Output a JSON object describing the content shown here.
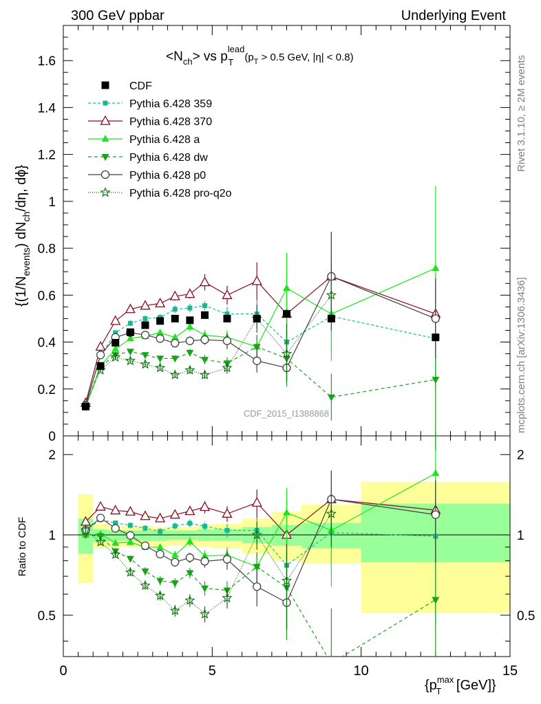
{
  "header": {
    "left": "300 GeV ppbar",
    "right": "Underlying Event"
  },
  "side_labels": {
    "top": "Rivet 3.1.10, ≥ 2M events",
    "bottom": "mcplots.cern.ch [arXiv:1306.3436]"
  },
  "watermark": "CDF_2015_I1388868",
  "plot_title": {
    "main": "<N",
    "sub": "ch",
    "mid": "> vs p",
    "sup": "lead",
    "sub2": "T",
    "cut": "(p",
    "cut_sub": "T",
    "cut_rest": " > 0.5 GeV, |η| < 0.8)"
  },
  "y_label": {
    "a": "{(1/N",
    "a_sub": "events",
    "b": ") dN",
    "b_sub": "ch",
    "c": "/dη, dϕ}"
  },
  "ratio_label": "Ratio to CDF",
  "x_label": {
    "a": "{p",
    "sup": "max",
    "sub": "T",
    "b": " [GeV]}"
  },
  "legend": [
    {
      "label": "CDF"
    },
    {
      "label": "Pythia 6.428 359"
    },
    {
      "label": "Pythia 6.428 370"
    },
    {
      "label": "Pythia 6.428 a"
    },
    {
      "label": "Pythia 6.428 dw"
    },
    {
      "label": "Pythia 6.428 p0"
    },
    {
      "label": "Pythia 6.428 pro-q2o"
    }
  ],
  "chart_data": {
    "type": "scatter",
    "x": [
      0.75,
      1.25,
      1.75,
      2.25,
      2.75,
      3.25,
      3.75,
      4.25,
      4.75,
      5.5,
      6.5,
      7.5,
      9.0,
      12.5
    ],
    "xlim": [
      0,
      15
    ],
    "ylim": [
      0,
      1.75
    ],
    "ratio_ylim": [
      0.35,
      2.35
    ],
    "x_ticks": [
      "0",
      "5",
      "10",
      "15"
    ],
    "y_ticks": [
      "0",
      "0.2",
      "0.4",
      "0.6",
      "0.8",
      "1",
      "1.2",
      "1.4",
      "1.6"
    ],
    "ratio_ticks_left": [
      "0.5",
      "1",
      "2"
    ],
    "ratio_ticks_right": [
      "0.5",
      "1",
      "2"
    ],
    "band_edges": [
      0.5,
      1.0,
      1.5,
      2.0,
      2.5,
      3.0,
      3.5,
      4.0,
      4.5,
      5.0,
      6.0,
      7.0,
      8.0,
      10.0,
      15.0
    ],
    "band_inner_lo": [
      0.85,
      0.94,
      0.95,
      0.95,
      0.95,
      0.95,
      0.96,
      0.96,
      0.95,
      0.95,
      0.93,
      0.91,
      0.89,
      0.79
    ],
    "band_inner_hi": [
      1.15,
      1.05,
      1.04,
      1.04,
      1.04,
      1.04,
      1.04,
      1.04,
      1.05,
      1.05,
      1.07,
      1.09,
      1.11,
      1.31
    ],
    "band_outer_lo": [
      0.66,
      0.89,
      0.9,
      0.9,
      0.9,
      0.9,
      0.91,
      0.91,
      0.9,
      0.89,
      0.85,
      0.8,
      0.78,
      0.51
    ],
    "band_outer_hi": [
      1.42,
      1.1,
      1.08,
      1.08,
      1.08,
      1.07,
      1.07,
      1.07,
      1.09,
      1.1,
      1.15,
      1.22,
      1.3,
      1.58
    ],
    "series": [
      {
        "name": "CDF",
        "color": "#000000",
        "marker": "square",
        "dash": "none",
        "values": [
          0.125,
          0.298,
          0.397,
          0.442,
          0.472,
          0.49,
          0.5,
          0.493,
          0.515,
          0.5,
          0.5,
          0.52,
          0.5,
          0.42
        ]
      },
      {
        "name": "Pythia 6.428 359",
        "color": "#18b894",
        "marker": "square-small",
        "dash": "4,3",
        "values": [
          0.13,
          0.34,
          0.44,
          0.48,
          0.5,
          0.505,
          0.54,
          0.545,
          0.555,
          0.52,
          0.52,
          0.4,
          0.51,
          0.415
        ],
        "err": [
          0.004,
          0.008,
          0.01,
          0.012,
          0.013,
          0.014,
          0.016,
          0.018,
          0.02,
          0.03,
          0.06,
          0.12,
          0.15,
          0.22
        ]
      },
      {
        "name": "Pythia 6.428 370",
        "color": "#8b0a1e",
        "marker": "triangle-open",
        "dash": "none",
        "values": [
          0.14,
          0.38,
          0.49,
          0.54,
          0.555,
          0.565,
          0.595,
          0.605,
          0.655,
          0.6,
          0.66,
          0.52,
          0.68,
          0.52
        ],
        "err": [
          0.004,
          0.01,
          0.012,
          0.012,
          0.014,
          0.015,
          0.018,
          0.02,
          0.035,
          0.04,
          0.08,
          0.18,
          0.19,
          0.16
        ]
      },
      {
        "name": "Pythia 6.428 a",
        "color": "#1ee61e",
        "marker": "triangle",
        "dash": "none",
        "values": [
          0.125,
          0.3,
          0.37,
          0.415,
          0.425,
          0.44,
          0.42,
          0.465,
          0.43,
          0.42,
          0.38,
          0.63,
          0.52,
          0.715
        ],
        "err": [
          0.004,
          0.008,
          0.01,
          0.011,
          0.012,
          0.013,
          0.015,
          0.02,
          0.022,
          0.03,
          0.05,
          0.15,
          0.2,
          0.35
        ]
      },
      {
        "name": "Pythia 6.428 dw",
        "color": "#1aa31a",
        "marker": "triangle-down",
        "dash": "5,4",
        "values": [
          0.125,
          0.295,
          0.345,
          0.36,
          0.345,
          0.33,
          0.33,
          0.355,
          0.325,
          0.31,
          0.38,
          0.33,
          0.165,
          0.24
        ],
        "err": [
          0.004,
          0.008,
          0.01,
          0.01,
          0.012,
          0.013,
          0.014,
          0.016,
          0.02,
          0.025,
          0.05,
          0.12,
          0.1,
          0.3
        ]
      },
      {
        "name": "Pythia 6.428 p0",
        "color": "#404040",
        "marker": "circle-open",
        "dash": "none",
        "values": [
          0.13,
          0.345,
          0.42,
          0.44,
          0.43,
          0.415,
          0.395,
          0.405,
          0.41,
          0.405,
          0.32,
          0.29,
          0.68,
          0.5
        ],
        "err": [
          0.004,
          0.008,
          0.01,
          0.011,
          0.012,
          0.013,
          0.015,
          0.018,
          0.022,
          0.035,
          0.05,
          0.06,
          0.19,
          0.17
        ]
      },
      {
        "name": "Pythia 6.428 pro-q2o",
        "color": "#0a6e0a",
        "marker": "star",
        "dash": "1,2",
        "values": [
          0.13,
          0.28,
          0.335,
          0.32,
          0.305,
          0.29,
          0.26,
          0.28,
          0.26,
          0.29,
          0.5,
          0.35,
          0.6,
          null
        ],
        "err": [
          0.004,
          0.007,
          0.009,
          0.01,
          0.011,
          0.012,
          0.013,
          0.015,
          0.018,
          0.025,
          0.06,
          0.12,
          0.15,
          null
        ]
      }
    ]
  }
}
